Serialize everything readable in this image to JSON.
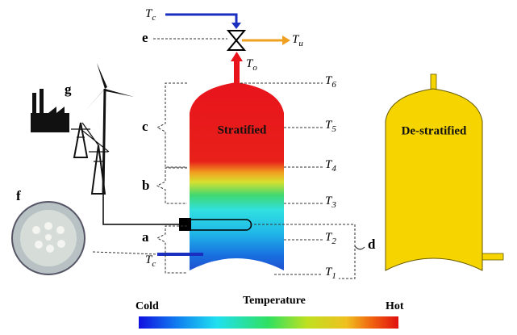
{
  "valve": {
    "letter": "e",
    "inlet": {
      "symbol": "T",
      "index": "c"
    },
    "outlet": {
      "symbol": "T",
      "index": "u"
    },
    "tank_out": {
      "symbol": "T",
      "index": "o"
    }
  },
  "sensors": [
    {
      "symbol": "T",
      "index": "6"
    },
    {
      "symbol": "T",
      "index": "5"
    },
    {
      "symbol": "T",
      "index": "4"
    },
    {
      "symbol": "T",
      "index": "3"
    },
    {
      "symbol": "T",
      "index": "2"
    },
    {
      "symbol": "T",
      "index": "1"
    }
  ],
  "zones": [
    "c",
    "b",
    "a"
  ],
  "heater": {
    "letter": "d"
  },
  "cold_inlet": {
    "symbol": "T",
    "index": "c"
  },
  "panels": {
    "grid": "g",
    "photo": "f"
  },
  "tanks": [
    "Stratified",
    "De-stratified"
  ],
  "colorbar": {
    "title": "Temperature",
    "low": "Cold",
    "high": "Hot"
  }
}
